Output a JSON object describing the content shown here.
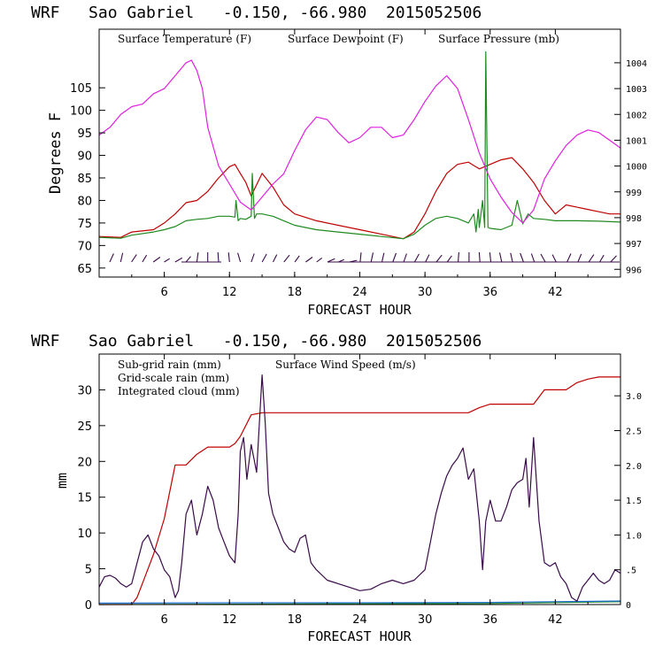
{
  "colors": {
    "temperature": "#c00000",
    "dewpoint": "#1f8a1f",
    "pressure": "#e020e0",
    "subgrid_rain": "#c00000",
    "gridscale_rain": "#1f8a1f",
    "cloud": "#1f6fd0",
    "wind": "#3a0a4a"
  },
  "chart_data": [
    {
      "type": "line",
      "title": "WRF   Sao Gabriel   -0.150, -66.980  2015052506",
      "xlabel": "FORECAST HOUR",
      "ylabel": "Degrees F",
      "xlim": [
        0,
        48
      ],
      "ylim": [
        63,
        118
      ],
      "y2lim": [
        995.7,
        1005.3
      ],
      "x_ticks": [
        "6",
        "12",
        "18",
        "24",
        "30",
        "36",
        "42"
      ],
      "x_tick_values": [
        6,
        12,
        18,
        24,
        30,
        36,
        42
      ],
      "y_ticks": [
        "65",
        "70",
        "75",
        "80",
        "85",
        "90",
        "95",
        "100",
        "105"
      ],
      "y_tick_values": [
        65,
        70,
        75,
        80,
        85,
        90,
        95,
        100,
        105
      ],
      "y2_ticks": [
        "996",
        "997",
        "998",
        "999",
        "1000",
        "1001",
        "1002",
        "1003",
        "1004"
      ],
      "y2_tick_values": [
        996,
        997,
        998,
        999,
        1000,
        1001,
        1002,
        1003,
        1004
      ],
      "legend": [
        "Surface Temperature (F)",
        "Surface Dewpoint (F)",
        "Surface Pressure (mb)"
      ],
      "series": [
        {
          "name": "Surface Temperature (F)",
          "axis": "left",
          "x": [
            0,
            2,
            3,
            5,
            6,
            7,
            8,
            9,
            10,
            11,
            12,
            12.5,
            13,
            13.5,
            14,
            15,
            16,
            17,
            18,
            20,
            22,
            24,
            26,
            28,
            29,
            30,
            31,
            32,
            33,
            34,
            35,
            36,
            37,
            38,
            39,
            40,
            41,
            42,
            43,
            44,
            45,
            46,
            47,
            48
          ],
          "values": [
            72,
            71.8,
            73,
            73.5,
            75,
            77,
            79.5,
            80,
            82,
            85,
            87.5,
            88,
            86,
            84,
            81,
            86,
            83,
            79,
            77,
            75.5,
            74.5,
            73.5,
            72.5,
            71.5,
            73,
            77,
            82,
            86,
            88,
            88.5,
            87,
            88,
            89,
            89.5,
            87,
            84,
            80,
            77,
            79,
            78.5,
            78,
            77.5,
            77,
            77
          ]
        },
        {
          "name": "Surface Dewpoint (F)",
          "axis": "left",
          "x": [
            0,
            2,
            3,
            5,
            6,
            7,
            8,
            9,
            10,
            11,
            12,
            12.5,
            12.6,
            12.8,
            13,
            13.5,
            14,
            14.1,
            14.3,
            14.5,
            15,
            16,
            17,
            18,
            20,
            22,
            24,
            26,
            28,
            29,
            30,
            31,
            32,
            33,
            34,
            34.5,
            34.7,
            34.9,
            35,
            35.3,
            35.5,
            35.6,
            35.8,
            36,
            37,
            38,
            38.5,
            39,
            39.5,
            40,
            41,
            42,
            44,
            46,
            47,
            48
          ],
          "values": [
            71.8,
            71.6,
            72.3,
            73,
            73.5,
            74.2,
            75.5,
            75.8,
            76,
            76.5,
            76.5,
            76.3,
            80,
            75.5,
            76,
            75.8,
            76.5,
            86,
            76,
            77,
            77,
            76.5,
            75.5,
            74.5,
            73.5,
            73,
            72.5,
            72,
            71.5,
            72.5,
            74.5,
            76,
            76.5,
            76,
            75,
            77,
            73,
            78,
            74,
            80,
            74,
            113,
            74,
            73.8,
            73.5,
            74.5,
            80,
            74.8,
            77,
            76,
            75.8,
            75.5,
            75.5,
            75.4,
            75.3,
            75.2
          ]
        },
        {
          "name": "Surface Pressure (mb)",
          "axis": "right",
          "x": [
            0,
            1,
            2,
            3,
            4,
            5,
            6,
            7,
            8,
            8.5,
            9,
            9.5,
            10,
            11,
            12,
            13,
            14,
            15,
            16,
            17,
            18,
            19,
            20,
            21,
            22,
            23,
            24,
            25,
            26,
            27,
            28,
            29,
            30,
            31,
            32,
            33,
            34,
            35,
            36,
            37,
            38,
            39,
            40,
            41,
            42,
            43,
            44,
            45,
            46,
            47,
            48
          ],
          "values": [
            1001.2,
            1001.5,
            1002,
            1002.3,
            1002.4,
            1002.8,
            1003,
            1003.5,
            1004,
            1004.1,
            1003.7,
            1003,
            1001.5,
            1000,
            999.3,
            998.6,
            998.3,
            998.8,
            999.3,
            999.7,
            1000.6,
            1001.4,
            1001.9,
            1001.8,
            1001.3,
            1000.9,
            1001.1,
            1001.5,
            1001.5,
            1001.1,
            1001.2,
            1001.8,
            1002.5,
            1003.1,
            1003.5,
            1003,
            1001.8,
            1000.5,
            999.5,
            998.8,
            998.2,
            997.8,
            998.3,
            999.5,
            1000.2,
            1000.8,
            1001.2,
            1001.4,
            1001.3,
            1001,
            1000.7
          ]
        }
      ],
      "wind_barbs_row": "wind barbs along bottom of upper panel"
    },
    {
      "type": "line",
      "title": "WRF   Sao Gabriel   -0.150, -66.980  2015052506",
      "xlabel": "FORECAST HOUR",
      "ylabel": "mm",
      "xlim": [
        0,
        48
      ],
      "ylim": [
        0,
        35
      ],
      "y2lim": [
        0,
        3.6
      ],
      "x_ticks": [
        "6",
        "12",
        "18",
        "24",
        "30",
        "36",
        "42"
      ],
      "x_tick_values": [
        6,
        12,
        18,
        24,
        30,
        36,
        42
      ],
      "y_ticks": [
        "0",
        "5",
        "10",
        "15",
        "20",
        "25",
        "30"
      ],
      "y_tick_values": [
        0,
        5,
        10,
        15,
        20,
        25,
        30
      ],
      "y2_ticks": [
        "0",
        ".5",
        "1.0",
        "1.5",
        "2.0",
        "2.5",
        "3.0"
      ],
      "y2_tick_values": [
        0,
        0.5,
        1.0,
        1.5,
        2.0,
        2.5,
        3.0
      ],
      "legend": [
        "Sub-grid rain (mm)",
        "Grid-scale rain (mm)",
        "Integrated cloud (mm)",
        "Surface Wind Speed (m/s)"
      ],
      "series": [
        {
          "name": "Sub-grid rain (mm)",
          "axis": "left",
          "x": [
            0,
            3,
            3.5,
            4,
            5,
            6,
            7,
            8,
            9,
            10,
            11,
            12,
            12.5,
            13,
            14,
            15,
            16,
            18,
            20,
            24,
            28,
            32,
            34,
            35,
            36,
            38,
            40,
            41,
            42,
            43,
            44,
            45,
            46,
            48
          ],
          "values": [
            0,
            0,
            1,
            3,
            7,
            12,
            19.5,
            19.5,
            21,
            22,
            22,
            22,
            22.5,
            23.5,
            26.5,
            26.8,
            26.8,
            26.8,
            26.8,
            26.8,
            26.8,
            26.8,
            26.8,
            27.5,
            28,
            28,
            28,
            30,
            30,
            30,
            31,
            31.5,
            31.8,
            31.8
          ]
        },
        {
          "name": "Grid-scale rain (mm)",
          "axis": "left",
          "x": [
            0,
            12,
            24,
            36,
            48
          ],
          "values": [
            0,
            0.05,
            0.1,
            0.15,
            0.4
          ]
        },
        {
          "name": "Integrated cloud (mm)",
          "axis": "left",
          "x": [
            0,
            12,
            24,
            36,
            48
          ],
          "values": [
            0.2,
            0.25,
            0.25,
            0.3,
            0.5
          ]
        },
        {
          "name": "Surface Wind Speed (m/s)",
          "axis": "right",
          "x": [
            0,
            0.5,
            1,
            1.5,
            2,
            2.5,
            3,
            3.5,
            4,
            4.5,
            5,
            5.5,
            6,
            6.5,
            7,
            7.3,
            7.6,
            8,
            8.5,
            9,
            9.5,
            10,
            10.5,
            11,
            11.5,
            12,
            12.5,
            12.8,
            13,
            13.3,
            13.6,
            14,
            14.5,
            15,
            15.3,
            15.6,
            16,
            16.5,
            17,
            17.5,
            18,
            18.5,
            19,
            19.5,
            20,
            21,
            22,
            23,
            24,
            25,
            26,
            27,
            28,
            29,
            30,
            30.5,
            31,
            31.5,
            32,
            32.5,
            33,
            33.5,
            34,
            34.5,
            35,
            35.3,
            35.6,
            36,
            36.5,
            37,
            37.5,
            38,
            38.5,
            39,
            39.3,
            39.6,
            40,
            40.5,
            41,
            41.5,
            42,
            42.5,
            43,
            43.5,
            44,
            44.5,
            45,
            45.5,
            46,
            46.5,
            47,
            47.5,
            48
          ],
          "values": [
            0.25,
            0.4,
            0.42,
            0.38,
            0.3,
            0.25,
            0.3,
            0.6,
            0.9,
            1.0,
            0.8,
            0.7,
            0.5,
            0.4,
            0.1,
            0.2,
            0.6,
            1.3,
            1.5,
            1.0,
            1.3,
            1.7,
            1.5,
            1.1,
            0.9,
            0.7,
            0.6,
            1.3,
            2.2,
            2.4,
            1.8,
            2.3,
            1.9,
            3.3,
            2.6,
            1.6,
            1.3,
            1.1,
            0.9,
            0.8,
            0.75,
            0.95,
            1.0,
            0.6,
            0.5,
            0.35,
            0.3,
            0.25,
            0.2,
            0.22,
            0.3,
            0.35,
            0.3,
            0.35,
            0.5,
            0.9,
            1.3,
            1.6,
            1.85,
            2.0,
            2.1,
            2.25,
            1.8,
            1.95,
            1.2,
            0.5,
            1.2,
            1.5,
            1.2,
            1.2,
            1.4,
            1.65,
            1.75,
            1.8,
            2.1,
            1.4,
            2.4,
            1.2,
            0.6,
            0.55,
            0.6,
            0.4,
            0.3,
            0.1,
            0.05,
            0.25,
            0.35,
            0.45,
            0.35,
            0.3,
            0.35,
            0.5,
            0.45
          ]
        }
      ]
    }
  ]
}
